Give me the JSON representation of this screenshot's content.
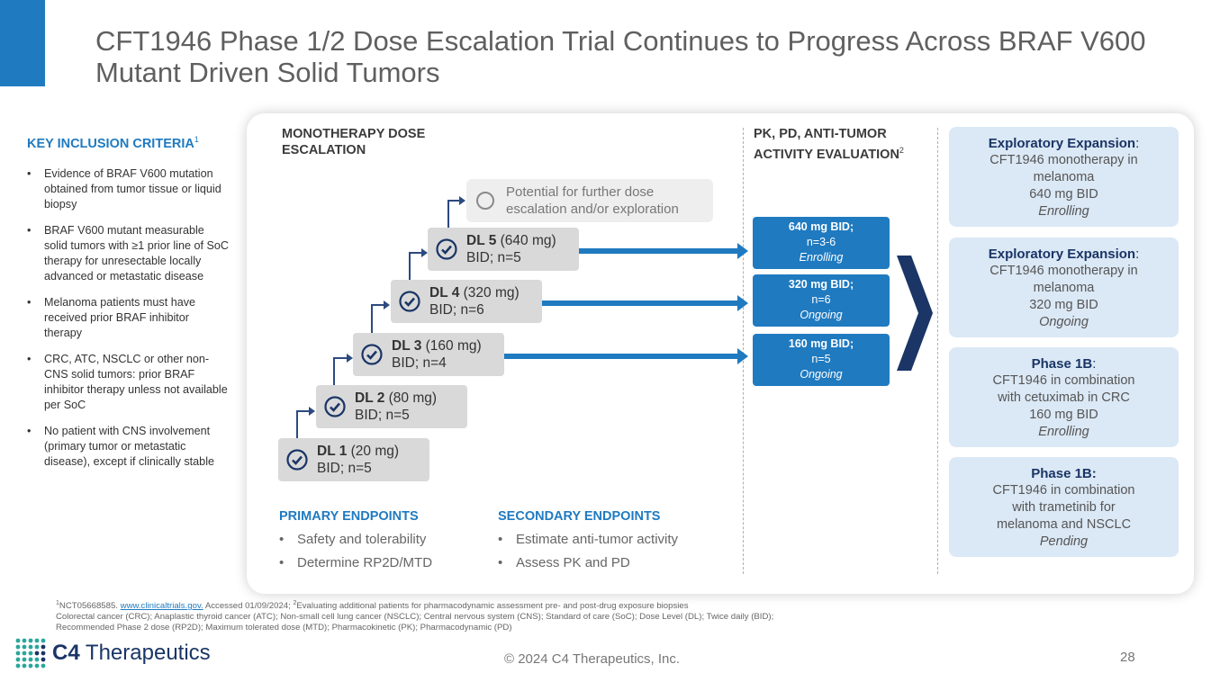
{
  "title": "CFT1946 Phase 1/2 Dose Escalation Trial Continues to Progress Across BRAF V600 Mutant Driven Solid Tumors",
  "inclusion": {
    "heading": "KEY INCLUSION CRITERIA",
    "heading_sup": "1",
    "items": [
      "Evidence of BRAF V600 mutation obtained from tumor tissue or liquid biopsy",
      "BRAF V600 mutant measurable solid tumors with ≥1 prior line of SoC therapy for unresectable locally advanced or metastatic disease",
      "Melanoma patients must have received prior BRAF inhibitor therapy",
      "CRC, ATC, NSCLC or other non-CNS solid tumors: prior BRAF inhibitor therapy unless not available per SoC",
      "No patient with CNS involvement (primary tumor or metastatic disease), except if clinically stable"
    ]
  },
  "mono": {
    "heading_line1": "MONOTHERAPY DOSE",
    "heading_line2": "ESCALATION"
  },
  "pk": {
    "heading_line1": "PK, PD, ANTI-TUMOR",
    "heading_line2": "ACTIVITY EVALUATION",
    "heading_sup": "2"
  },
  "potential": "Potential for further dose escalation and/or exploration",
  "steps": [
    {
      "level": "DL 1",
      "dose": " (20 mg)",
      "detail": "BID; n=5"
    },
    {
      "level": "DL 2",
      "dose": " (80 mg)",
      "detail": "BID; n=5"
    },
    {
      "level": "DL 3",
      "dose": " (160 mg)",
      "detail": "BID; n=4"
    },
    {
      "level": "DL 4",
      "dose": " (320 mg)",
      "detail": "BID; n=6"
    },
    {
      "level": "DL 5",
      "dose": " (640 mg)",
      "detail": "BID; n=5"
    }
  ],
  "pk_boxes": [
    {
      "dose": "640 mg BID;",
      "n": "n=3-6",
      "status": "Enrolling"
    },
    {
      "dose": "320 mg BID;",
      "n": "n=6",
      "status": "Ongoing"
    },
    {
      "dose": "160 mg BID;",
      "n": "n=5",
      "status": "Ongoing"
    }
  ],
  "expansions": [
    {
      "title": "Exploratory Expansion",
      "colon": ":",
      "lines": [
        "CFT1946 monotherapy in",
        "melanoma",
        "640 mg BID"
      ],
      "status": "Enrolling"
    },
    {
      "title": "Exploratory Expansion",
      "colon": ":",
      "lines": [
        "CFT1946 monotherapy in",
        "melanoma",
        "320 mg BID"
      ],
      "status": "Ongoing"
    },
    {
      "title": "Phase 1B",
      "colon": ":",
      "lines": [
        "CFT1946 in combination",
        "with cetuximab in CRC",
        "160 mg BID"
      ],
      "status": "Enrolling"
    },
    {
      "title": "Phase 1B:",
      "colon": "",
      "lines": [
        "CFT1946 in combination",
        "with trametinib for",
        "melanoma and NSCLC"
      ],
      "status": "Pending"
    }
  ],
  "primary": {
    "heading": "PRIMARY ENDPOINTS",
    "items": [
      "Safety and tolerability",
      "Determine RP2D/MTD"
    ]
  },
  "secondary": {
    "heading": "SECONDARY ENDPOINTS",
    "items": [
      "Estimate anti-tumor activity",
      "Assess PK and PD"
    ]
  },
  "footnote": {
    "sup1": "1",
    "part1": "NCT05668585. ",
    "link": "www.clinicaltrials.gov.",
    "part2": " Accessed 01/09/2024; ",
    "sup2": "2",
    "part3": "Evaluating additional patients for pharmacodynamic assessment pre- and post-drug exposure biopsies",
    "line2": "Colorectal cancer (CRC); Anaplastic thyroid cancer (ATC); Non-small cell lung cancer (NSCLC); Central nervous system (CNS); Standard of care (SoC); Dose Level (DL); Twice daily (BID);",
    "line3": "Recommended Phase 2 dose (RP2D); Maximum tolerated dose (MTD); Pharmacokinetic (PK); Pharmacodynamic (PD)"
  },
  "logo": {
    "bold": "C4",
    "rest": " Therapeutics"
  },
  "copyright": "© 2024 C4 Therapeutics, Inc.",
  "page_number": "28",
  "colors": {
    "accent": "#1f7ac0",
    "navy": "#1a3566",
    "teal": "#2aa79b",
    "exp_bg": "#dbe8f5"
  }
}
